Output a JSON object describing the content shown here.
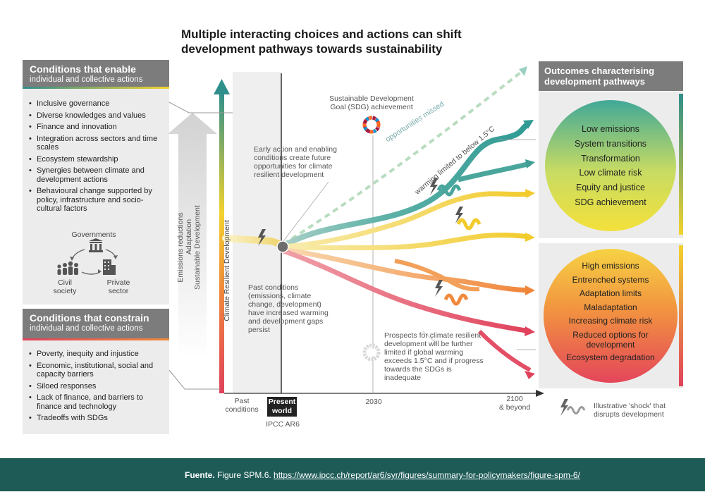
{
  "title_line1": "Multiple interacting choices and actions can shift",
  "title_line2": "development pathways towards sustainability",
  "enable_panel": {
    "heading": "Conditions that enable",
    "subheading": "individual and collective actions",
    "items": [
      "Inclusive governance",
      "Diverse knowledges and values",
      "Finance and innovation",
      "Integration across sectors and time scales",
      "Ecosystem stewardship",
      "Synergies between climate and development actions",
      "Behavioural change supported by policy, infrastructure and socio-cultural factors"
    ],
    "actors": {
      "governments": "Governments",
      "civil": "Civil society",
      "private": "Private sector"
    }
  },
  "constrain_panel": {
    "heading": "Conditions that constrain",
    "subheading": "individual and collective actions",
    "items": [
      "Poverty, inequity and injustice",
      "Economic, institutional, social and capacity barriers",
      "Siloed responses",
      "Lack of finance, and barriers to finance and technology",
      "Tradeoffs with SDGs"
    ]
  },
  "axis": {
    "vertical_label": "Climate Resilient Development",
    "arrow_labels": [
      "Emissions reductions",
      "Adaptation",
      "Sustainable Development"
    ],
    "past": "Past conditions",
    "present_line1": "Present",
    "present_line2": "world",
    "ipcc": "IPCC AR6",
    "year_2030": "2030",
    "year_2100_line1": "2100",
    "year_2100_line2": "& beyond"
  },
  "annotations": {
    "sdg": "Sustainable Development Goal (SDG) achievement",
    "early_action": "Early action and enabling conditions create future opportunities for climate resilient development",
    "past_conditions": "Past conditions (emissions, climate change, development) have increased warming and development gaps persist",
    "prospects": "Prospects for climate resilient development will be further limited if global warming exceeds 1.5°C and if progress towards the SDGs is inadequate",
    "opportunities_missed": "opportunities missed",
    "warming_limited": "warming limited to below 1.5°C"
  },
  "outcomes": {
    "heading_line1": "Outcomes characterising",
    "heading_line2": "development pathways",
    "positive": [
      "Low emissions",
      "System transitions",
      "Transformation",
      "Low climate risk",
      "Equity and justice",
      "SDG achievement"
    ],
    "negative": [
      "High emissions",
      "Entrenched systems",
      "Adaptation limits",
      "Maladaptation",
      "Increasing climate risk",
      "Reduced options for development",
      "Ecosystem degradation"
    ]
  },
  "shock_legend": "Illustrative 'shock' that disrupts development",
  "footer": {
    "label": "Fuente.",
    "text": " Figure SPM.6. ",
    "url": "https://www.ipcc.ch/report/ar6/syr/figures/summary-for-policymakers/figure-spm-6/"
  },
  "colors": {
    "header_gray": "#7c7c7c",
    "panel_gray": "#ececec",
    "teal": "#4ea8a0",
    "yellow": "#f2d22e",
    "orange": "#f08a3c",
    "red": "#e0415b",
    "footer": "#1e5b57"
  }
}
